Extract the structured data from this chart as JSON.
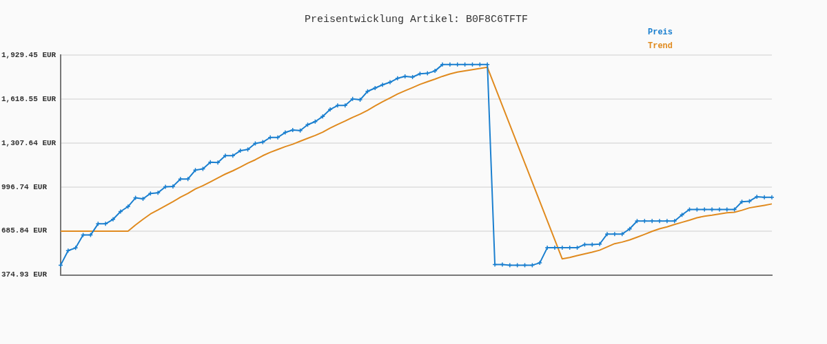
{
  "chart_data": {
    "type": "line",
    "title": "Preisentwicklung Artikel: B0F8C6TFTF",
    "categories": [
      null,
      null,
      null,
      null,
      null,
      null,
      null,
      null,
      null,
      null,
      null,
      null,
      null,
      null,
      null,
      null,
      null,
      null,
      null,
      null,
      null,
      null,
      null,
      null,
      null,
      null,
      null,
      null,
      null,
      null,
      null,
      null,
      null,
      null,
      null,
      null,
      null,
      null,
      null,
      null,
      null,
      null,
      null,
      null,
      null,
      null,
      null,
      null,
      null,
      null,
      null,
      null,
      null,
      null,
      null,
      null,
      null,
      null,
      null,
      null,
      null,
      null,
      null,
      null,
      null,
      null,
      null,
      null,
      null,
      null,
      null,
      null,
      null,
      null,
      null,
      null,
      null,
      null,
      null,
      null,
      null,
      null,
      null,
      null,
      null,
      null,
      null,
      null,
      null,
      null,
      null,
      null,
      null,
      null,
      null,
      null
    ],
    "series": [
      {
        "name": "Preis",
        "color": "#1a7fcf",
        "marker": "cross",
        "values": [
          444,
          547,
          566,
          657,
          657,
          736,
          736,
          768,
          823,
          858,
          920,
          913,
          951,
          956,
          998,
          1001,
          1053,
          1053,
          1116,
          1125,
          1172,
          1170,
          1218,
          1218,
          1253,
          1262,
          1304,
          1314,
          1347,
          1347,
          1382,
          1399,
          1396,
          1437,
          1459,
          1495,
          1545,
          1573,
          1573,
          1619,
          1613,
          1673,
          1696,
          1719,
          1737,
          1765,
          1779,
          1774,
          1797,
          1800,
          1817,
          1862,
          1862,
          1862,
          1862,
          1862,
          1862,
          1862,
          448,
          448,
          444,
          444,
          444,
          444,
          460,
          567,
          567,
          567,
          567,
          567,
          590,
          590,
          593,
          664,
          664,
          664,
          700,
          756,
          756,
          756,
          756,
          756,
          756,
          800,
          838,
          838,
          838,
          838,
          838,
          838,
          838,
          892,
          896,
          928,
          924,
          924
        ]
      },
      {
        "name": "Trend",
        "color": "#e08a1e",
        "marker": "none",
        "values": [
          684,
          684,
          684,
          684,
          684,
          684,
          684,
          684,
          684,
          684,
          728,
          768,
          806,
          834,
          864,
          893,
          924,
          951,
          983,
          1006,
          1033,
          1061,
          1088,
          1111,
          1137,
          1165,
          1189,
          1218,
          1242,
          1262,
          1282,
          1299,
          1320,
          1341,
          1361,
          1384,
          1413,
          1439,
          1463,
          1489,
          1512,
          1539,
          1570,
          1599,
          1626,
          1654,
          1677,
          1699,
          1722,
          1741,
          1759,
          1779,
          1796,
          1809,
          1818,
          1826,
          1835,
          1843,
          null,
          null,
          null,
          null,
          null,
          null,
          null,
          null,
          null,
          488,
          498,
          512,
          524,
          536,
          550,
          573,
          596,
          607,
          622,
          642,
          662,
          683,
          701,
          715,
          732,
          747,
          762,
          779,
          790,
          797,
          806,
          814,
          818,
          832,
          849,
          858,
          867,
          877
        ]
      }
    ],
    "ylim": [
      374.93,
      1929.45
    ],
    "yticks": [
      {
        "value": 374.93,
        "label": "374.93 EUR"
      },
      {
        "value": 685.84,
        "label": "685.84 EUR"
      },
      {
        "value": 996.74,
        "label": "996.74 EUR"
      },
      {
        "value": 1307.64,
        "label": "1,307.64 EUR"
      },
      {
        "value": 1618.55,
        "label": "1,618.55 EUR"
      },
      {
        "value": 1929.45,
        "label": "1,929.45 EUR"
      }
    ],
    "grid": "y",
    "legend": "top right",
    "line_style": "solid"
  }
}
